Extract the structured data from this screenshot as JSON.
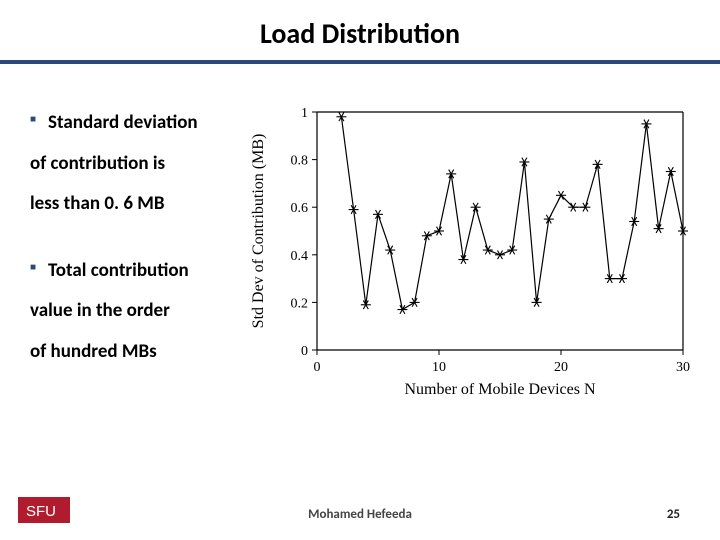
{
  "title": "Load Distribution",
  "bullets_group1": [
    "Standard deviation",
    "of contribution is",
    "less than 0. 6 MB"
  ],
  "bullets_group2": [
    "Total contribution",
    "value in the order",
    "of hundred MBs"
  ],
  "footer": {
    "author": "Mohamed  Hefeeda",
    "page": "25",
    "logo_text": "SFU",
    "logo_bg": "#b01c2e",
    "logo_fg": "#ffffff"
  },
  "chart": {
    "type": "line",
    "xlabel": "Number of Mobile Devices N",
    "ylabel": "Std Dev of Contribution (MB)",
    "xlim": [
      0,
      30
    ],
    "ylim": [
      0,
      1
    ],
    "label_fontsize": 16,
    "tick_fontsize": 14,
    "xticks": [
      0,
      10,
      20,
      30
    ],
    "yticks": [
      0,
      0.2,
      0.4,
      0.6,
      0.8,
      1
    ],
    "line_color": "#000000",
    "marker_color": "#000000",
    "marker": "star",
    "marker_size": 5,
    "line_width": 1.2,
    "axis_color": "#000000",
    "tick_len": 5,
    "background_color": "#ffffff",
    "data": {
      "x": [
        2,
        3,
        4,
        5,
        6,
        7,
        8,
        9,
        10,
        11,
        12,
        13,
        14,
        15,
        16,
        17,
        18,
        19,
        20,
        21,
        22,
        23,
        24,
        25,
        26,
        27,
        28,
        29,
        30
      ],
      "y": [
        0.98,
        0.59,
        0.19,
        0.57,
        0.42,
        0.17,
        0.2,
        0.48,
        0.5,
        0.74,
        0.38,
        0.6,
        0.42,
        0.4,
        0.42,
        0.79,
        0.2,
        0.55,
        0.65,
        0.6,
        0.6,
        0.78,
        0.3,
        0.3,
        0.54,
        0.95,
        0.51,
        0.75,
        0.5
      ]
    }
  }
}
